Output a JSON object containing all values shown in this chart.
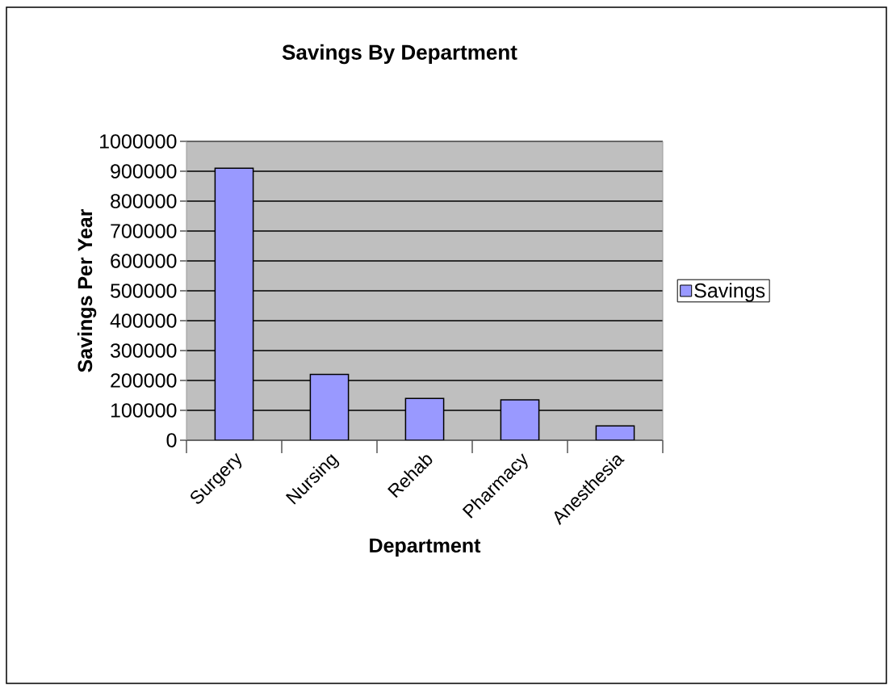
{
  "chart_data": {
    "type": "bar",
    "title": "Savings By Department",
    "xlabel": "Department",
    "ylabel": "Savings Per Year",
    "categories": [
      "Surgery",
      "Nursing",
      "Rehab",
      "Pharmacy",
      "Anesthesia"
    ],
    "series": [
      {
        "name": "Savings",
        "color": "#9999ff",
        "values": [
          910000,
          220000,
          140000,
          135000,
          48000
        ]
      }
    ],
    "ylim": [
      0,
      1000000
    ],
    "yticks": [
      0,
      100000,
      200000,
      300000,
      400000,
      500000,
      600000,
      700000,
      800000,
      900000,
      1000000
    ],
    "grid": "y",
    "legend": "right"
  }
}
